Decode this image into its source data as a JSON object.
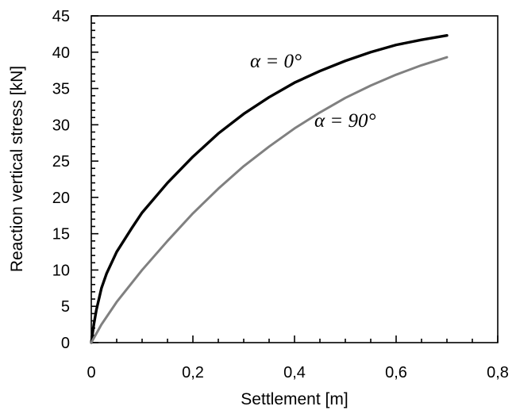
{
  "chart_data": {
    "type": "line",
    "title": "",
    "xlabel": "Settlement [m]",
    "ylabel": "Reaction  vertical stress  [kN]",
    "xlim": [
      0,
      0.8
    ],
    "ylim": [
      0,
      45
    ],
    "x_ticks": [
      0,
      0.2,
      0.4,
      0.6,
      0.8
    ],
    "x_tick_labels": [
      "0",
      "0,2",
      "0,4",
      "0,6",
      "0,8"
    ],
    "y_ticks": [
      0,
      5,
      10,
      15,
      20,
      25,
      30,
      35,
      40,
      45
    ],
    "y_tick_labels": [
      "0",
      "5",
      "10",
      "15",
      "20",
      "25",
      "30",
      "35",
      "40",
      "45"
    ],
    "grid": false,
    "legend": "none",
    "series": [
      {
        "label": "α = 0°",
        "color": "#000000",
        "x": [
          0,
          0.005,
          0.01,
          0.02,
          0.03,
          0.05,
          0.08,
          0.1,
          0.15,
          0.2,
          0.25,
          0.3,
          0.35,
          0.4,
          0.45,
          0.5,
          0.55,
          0.6,
          0.65,
          0.7
        ],
        "y": [
          0,
          2.5,
          4.5,
          7.5,
          9.5,
          12.5,
          15.8,
          17.9,
          22.0,
          25.6,
          28.8,
          31.5,
          33.8,
          35.8,
          37.4,
          38.8,
          40.0,
          41.0,
          41.7,
          42.3
        ]
      },
      {
        "label": "α = 90°",
        "color": "#808080",
        "x": [
          0,
          0.02,
          0.05,
          0.1,
          0.15,
          0.2,
          0.25,
          0.3,
          0.35,
          0.4,
          0.45,
          0.5,
          0.55,
          0.6,
          0.65,
          0.7
        ],
        "y": [
          0,
          2.5,
          5.6,
          10.0,
          14.0,
          17.8,
          21.2,
          24.3,
          27.0,
          29.5,
          31.7,
          33.7,
          35.4,
          36.9,
          38.2,
          39.3
        ]
      }
    ]
  }
}
